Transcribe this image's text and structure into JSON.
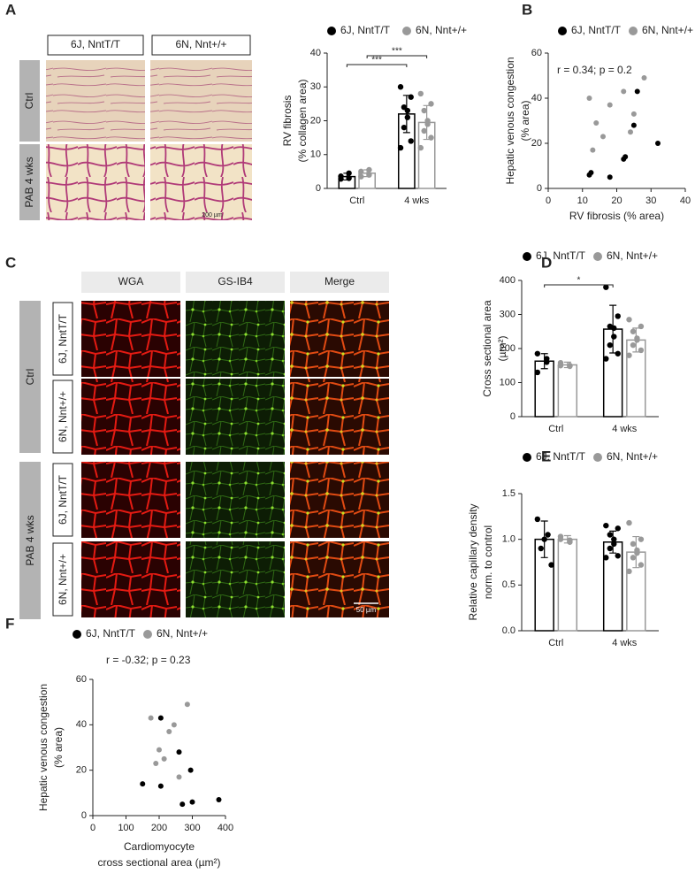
{
  "panel_labels": [
    "A",
    "B",
    "C",
    "D",
    "E",
    "F"
  ],
  "histology_a": {
    "columns": [
      "6J, NntT/T",
      "6N, Nnt+/+"
    ],
    "rows": [
      "Ctrl",
      "PAB 4 wks"
    ],
    "scale_bar": "200 µm"
  },
  "histology_c": {
    "columns": [
      "WGA",
      "GS-IB4",
      "Merge"
    ],
    "groups": [
      "Ctrl",
      "PAB 4 wks"
    ],
    "strains": [
      "6J, NntT/T",
      "6N, Nnt+/+"
    ],
    "scale_bar": "50 µm"
  },
  "chart_data": [
    {
      "type": "bar",
      "categories": [
        "Ctrl",
        "4 wks"
      ],
      "series": [
        {
          "name": "6J, NntT/T",
          "color": "#000000",
          "values": [
            3.5,
            22
          ],
          "errors": [
            1,
            5.5
          ],
          "points": [
            [
              2.8,
              4.5,
              3.0,
              3.6
            ],
            [
              30,
              27,
              24,
              23,
              21,
              18,
              14,
              12
            ]
          ]
        },
        {
          "name": "6N, Nnt+/+",
          "color": "#999999",
          "values": [
            4.5,
            19.5
          ],
          "errors": [
            1,
            5
          ],
          "points": [
            [
              3.5,
              5.5,
              4.0,
              5.0
            ],
            [
              28,
              25,
              23,
              20,
              19,
              17,
              15,
              12
            ]
          ]
        }
      ],
      "ylim": [
        0,
        40
      ],
      "yticks": [
        0,
        10,
        20,
        30,
        40
      ],
      "ylabel": [
        "RV fibrosis",
        "(% collagen area)"
      ],
      "annotations": [
        "***",
        "***"
      ]
    },
    {
      "type": "scatter",
      "series": [
        {
          "name": "6J, NntT/T",
          "color": "#000000",
          "x": [
            12,
            12.5,
            18,
            22,
            22.5,
            25,
            26,
            32
          ],
          "y": [
            6,
            7,
            5,
            13,
            14,
            28,
            43,
            20
          ]
        },
        {
          "name": "6N, Nnt+/+",
          "color": "#999999",
          "x": [
            12,
            13,
            14,
            16,
            18,
            22,
            24,
            25,
            28
          ],
          "y": [
            40,
            17,
            29,
            23,
            37,
            43,
            25,
            33,
            49
          ]
        }
      ],
      "xlim": [
        0,
        40
      ],
      "xticks": [
        0,
        10,
        20,
        30,
        40
      ],
      "ylim": [
        0,
        60
      ],
      "yticks": [
        0,
        20,
        40,
        60
      ],
      "xlabel": [
        "RV fibrosis (% area)"
      ],
      "ylabel": [
        "Hepatic venous congestion",
        "(% area)"
      ],
      "annotation": "r = 0.34; p = 0.2"
    },
    {
      "type": "bar",
      "categories": [
        "Ctrl",
        "4 wks"
      ],
      "series": [
        {
          "name": "6J, NntT/T",
          "color": "#000000",
          "values": [
            163,
            257
          ],
          "errors": [
            22,
            70
          ],
          "points": [
            [
              185,
              170,
              160,
              130
            ],
            [
              380,
              295,
              265,
              260,
              235,
              210,
              185,
              170
            ]
          ]
        },
        {
          "name": "6N, Nnt+/+",
          "color": "#999999",
          "values": [
            152,
            225
          ],
          "errors": [
            8,
            35
          ],
          "points": [
            [
              158,
              150,
              148,
              150
            ],
            [
              285,
              265,
              250,
              230,
              225,
              210,
              195,
              180
            ]
          ]
        }
      ],
      "ylim": [
        0,
        400
      ],
      "yticks": [
        0,
        100,
        200,
        300,
        400
      ],
      "ylabel": [
        "Cross sectional area",
        "(µm²)"
      ],
      "annotations": [
        "*"
      ]
    },
    {
      "type": "bar",
      "categories": [
        "Ctrl",
        "4 wks"
      ],
      "series": [
        {
          "name": "6J, NntT/T",
          "color": "#000000",
          "values": [
            1.0,
            0.97
          ],
          "errors": [
            0.2,
            0.12
          ],
          "points": [
            [
              1.22,
              1.05,
              1.0,
              0.9,
              0.72
            ],
            [
              1.15,
              1.12,
              1.05,
              1.0,
              0.95,
              0.9,
              0.82,
              0.8
            ]
          ]
        },
        {
          "name": "6N, Nnt+/+",
          "color": "#999999",
          "values": [
            1.0,
            0.86
          ],
          "errors": [
            0.04,
            0.17
          ],
          "points": [
            [
              1.03,
              0.99,
              0.97,
              1.0
            ],
            [
              1.18,
              1.0,
              0.95,
              0.88,
              0.85,
              0.8,
              0.72,
              0.65
            ]
          ]
        }
      ],
      "ylim": [
        0,
        1.5
      ],
      "yticks": [
        {
          "value": 0,
          "label": "0.0"
        },
        0.5,
        {
          "value": 1,
          "label": "1.0"
        },
        1.5
      ],
      "ylabel": [
        "Relative capillary density",
        "norm. to control"
      ],
      "annotations": []
    },
    {
      "type": "scatter",
      "series": [
        {
          "name": "6J, NntT/T",
          "color": "#000000",
          "x": [
            150,
            205,
            205,
            260,
            270,
            295,
            300,
            380
          ],
          "y": [
            14,
            13,
            43,
            28,
            5,
            20,
            6,
            7
          ]
        },
        {
          "name": "6N, Nnt+/+",
          "color": "#999999",
          "x": [
            175,
            190,
            200,
            215,
            230,
            245,
            260,
            285
          ],
          "y": [
            43,
            23,
            29,
            25,
            37,
            40,
            17,
            49
          ]
        }
      ],
      "xlim": [
        0,
        400
      ],
      "xticks": [
        0,
        100,
        200,
        300,
        400
      ],
      "ylim": [
        0,
        60
      ],
      "yticks": [
        0,
        20,
        40,
        60
      ],
      "xlabel": [
        "Cardiomyocyte",
        "cross sectional area (µm²)"
      ],
      "ylabel": [
        "Hepatic venous congestion",
        "(% area)"
      ],
      "annotation": "r = -0.32; p = 0.23"
    }
  ]
}
